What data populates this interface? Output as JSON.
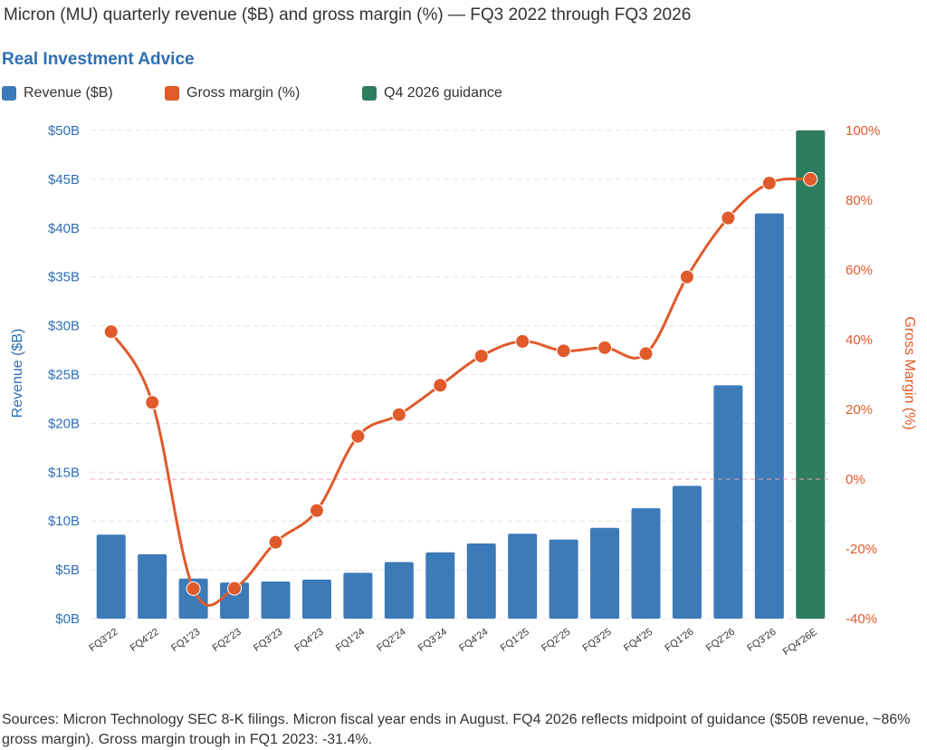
{
  "title": "Micron (MU) quarterly revenue ($B) and gross margin (%) — FQ3 2022 through FQ3 2026",
  "brand": "Real Investment Advice",
  "legend": [
    {
      "label": "Revenue ($B)",
      "color": "#3d7ab8"
    },
    {
      "label": "Gross margin (%)",
      "color": "#e05a2b"
    },
    {
      "label": "Q4 2026 guidance",
      "color": "#2e7d5e"
    }
  ],
  "footer": "Sources: Micron Technology SEC 8-K filings. Micron fiscal year ends in August. FQ4 2026 reflects midpoint of guidance ($50B revenue, ~86% gross margin). Gross margin trough in FQ1 2023: -31.4%.",
  "chart_data": {
    "type": "bar",
    "categories": [
      "FQ3'22",
      "FQ4'22",
      "FQ1'23",
      "FQ2'23",
      "FQ3'23",
      "FQ4'23",
      "FQ1'24",
      "FQ2'24",
      "FQ3'24",
      "FQ4'24",
      "FQ1'25",
      "FQ2'25",
      "FQ3'25",
      "FQ4'25",
      "FQ1'26",
      "FQ2'26",
      "FQ3'26",
      "FQ4'26E"
    ],
    "series": [
      {
        "name": "Revenue ($B)",
        "type": "bar",
        "axis": "left",
        "values": [
          8.6,
          6.6,
          4.1,
          3.7,
          3.8,
          4.0,
          4.7,
          5.8,
          6.8,
          7.7,
          8.7,
          8.1,
          9.3,
          11.3,
          13.6,
          23.9,
          41.5,
          50.0
        ],
        "colors": [
          "#3d7ab8",
          "#3d7ab8",
          "#3d7ab8",
          "#3d7ab8",
          "#3d7ab8",
          "#3d7ab8",
          "#3d7ab8",
          "#3d7ab8",
          "#3d7ab8",
          "#3d7ab8",
          "#3d7ab8",
          "#3d7ab8",
          "#3d7ab8",
          "#3d7ab8",
          "#3d7ab8",
          "#3d7ab8",
          "#3d7ab8",
          "#2e7d5e"
        ]
      },
      {
        "name": "Gross margin (%)",
        "type": "line",
        "axis": "right",
        "color": "#e05a2b",
        "values": [
          42.3,
          22.0,
          -31.4,
          -31.3,
          -18.1,
          -9.0,
          12.3,
          18.5,
          26.9,
          35.3,
          39.5,
          36.8,
          37.7,
          36.0,
          58.0,
          74.9,
          84.9,
          86.0
        ]
      }
    ],
    "y_left": {
      "label": "Revenue ($B)",
      "min": 0,
      "max": 50,
      "ticks": [
        "$0B",
        "$5B",
        "$10B",
        "$15B",
        "$20B",
        "$25B",
        "$30B",
        "$35B",
        "$40B",
        "$45B",
        "$50B"
      ]
    },
    "y_right": {
      "label": "Gross Margin (%)",
      "min": -40,
      "max": 100,
      "ticks": [
        "-40%",
        "-20%",
        "0%",
        "20%",
        "40%",
        "60%",
        "80%",
        "100%"
      ]
    },
    "zero_line": true,
    "grid": true
  }
}
